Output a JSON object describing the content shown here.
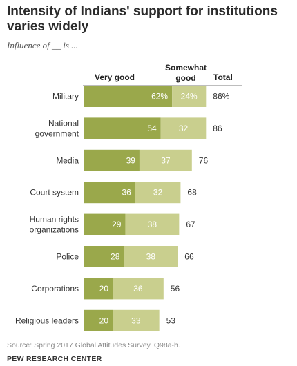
{
  "title": "Intensity of Indians' support for institutions varies widely",
  "subtitle": "Influence of __ is ...",
  "column_headers": {
    "very_good": "Very good",
    "somewhat_good": "Somewhat good",
    "total": "Total"
  },
  "colors": {
    "very_good": "#9aa84b",
    "somewhat_good": "#c9cf8e"
  },
  "chart_data": {
    "type": "bar",
    "orientation": "horizontal",
    "stacked": true,
    "categories": [
      [
        "Military"
      ],
      [
        "National",
        "government"
      ],
      [
        "Media"
      ],
      [
        "Court system"
      ],
      [
        "Human rights",
        "organizations"
      ],
      [
        "Police"
      ],
      [
        "Corporations"
      ],
      [
        "Religious leaders"
      ]
    ],
    "series": [
      {
        "name": "Very good",
        "values": [
          62,
          54,
          39,
          36,
          29,
          28,
          20,
          20
        ],
        "labels": [
          "62%",
          "54",
          "39",
          "36",
          "29",
          "28",
          "20",
          "20"
        ]
      },
      {
        "name": "Somewhat good",
        "values": [
          24,
          32,
          37,
          32,
          38,
          38,
          36,
          33
        ],
        "labels": [
          "24%",
          "32",
          "37",
          "32",
          "38",
          "38",
          "36",
          "33"
        ]
      }
    ],
    "totals": [
      86,
      86,
      76,
      68,
      67,
      66,
      56,
      53
    ],
    "total_labels": [
      "86%",
      "86",
      "76",
      "68",
      "67",
      "66",
      "56",
      "53"
    ],
    "xlim": [
      0,
      100
    ]
  },
  "source": "Source: Spring 2017 Global Attitudes Survey. Q98a-h.",
  "brand": "PEW RESEARCH CENTER"
}
